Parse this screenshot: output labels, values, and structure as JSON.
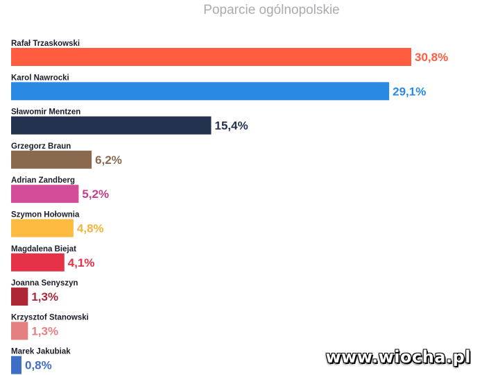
{
  "chart_data": {
    "type": "bar",
    "orientation": "horizontal",
    "title": "Poparcie ogólnopolskie",
    "xlim": [
      0,
      30.8
    ],
    "grid": false,
    "legend": "none",
    "categories": [
      "Rafał Trzaskowski",
      "Karol Nawrocki",
      "Sławomir Mentzen",
      "Grzegorz Braun",
      "Adrian Zandberg",
      "Szymon Hołownia",
      "Magdalena Biejat",
      "Joanna Senyszyn",
      "Krzysztof Stanowski",
      "Marek Jakubiak"
    ],
    "values": [
      30.8,
      29.1,
      15.4,
      6.2,
      5.2,
      4.8,
      4.1,
      1.3,
      1.3,
      0.8
    ],
    "value_labels": [
      "30,8%",
      "29,1%",
      "15,4%",
      "6,2%",
      "5,2%",
      "4,8%",
      "4,1%",
      "1,3%",
      "1,3%",
      "0,8%"
    ],
    "bar_colors": [
      "#ff5c40",
      "#2989e3",
      "#23334f",
      "#8a6a4f",
      "#d24c98",
      "#fdbb41",
      "#e63248",
      "#ad2736",
      "#e58080",
      "#3f6fc4"
    ],
    "label_colors": [
      "#ff5c40",
      "#2989e3",
      "#23334f",
      "#8a6a4f",
      "#c43d8a",
      "#f4b43a",
      "#e63248",
      "#ad2736",
      "#e58080",
      "#3f6fc4"
    ]
  },
  "watermark": "www.wiocha.pl"
}
